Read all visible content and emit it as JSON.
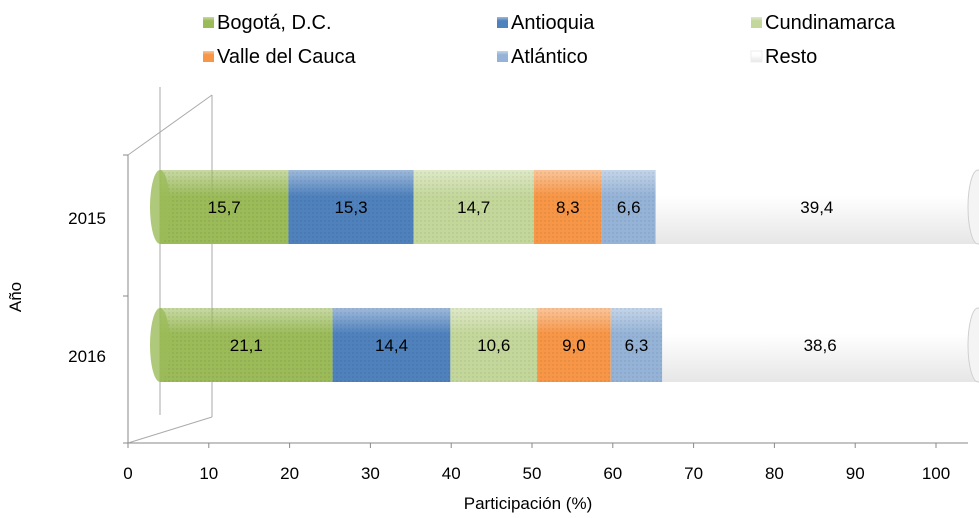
{
  "chart_data": {
    "type": "bar",
    "orientation": "horizontal",
    "stacked": true,
    "style": "3d-cylinder",
    "xlabel": "Participación (%)",
    "ylabel": "Año",
    "xlim": [
      0,
      100
    ],
    "xticks": [
      "0",
      "10",
      "20",
      "30",
      "40",
      "50",
      "60",
      "70",
      "80",
      "90",
      "100"
    ],
    "categories": [
      "2015",
      "2016"
    ],
    "legend_position": "top",
    "series": [
      {
        "name": "Bogotá, D.C.",
        "values": [
          15.7,
          21.1
        ],
        "labels": [
          "15,7",
          "21,1"
        ],
        "color": "#9bbb59"
      },
      {
        "name": "Antioquia",
        "values": [
          15.3,
          14.4
        ],
        "labels": [
          "15,3",
          "14,4"
        ],
        "color": "#4f81bd"
      },
      {
        "name": "Cundinamarca",
        "values": [
          14.7,
          10.6
        ],
        "labels": [
          "14,7",
          "10,6"
        ],
        "color": "#c4d79b"
      },
      {
        "name": "Valle del Cauca",
        "values": [
          8.3,
          9.0
        ],
        "labels": [
          "8,3",
          "9,0"
        ],
        "color": "#f79646"
      },
      {
        "name": "Atlántico",
        "values": [
          6.6,
          6.3
        ],
        "labels": [
          "6,6",
          "6,3"
        ],
        "color": "#95b3d7"
      },
      {
        "name": "Resto",
        "values": [
          39.4,
          38.6
        ],
        "labels": [
          "39,4",
          "38,6"
        ],
        "color": "#ffffff"
      }
    ]
  }
}
